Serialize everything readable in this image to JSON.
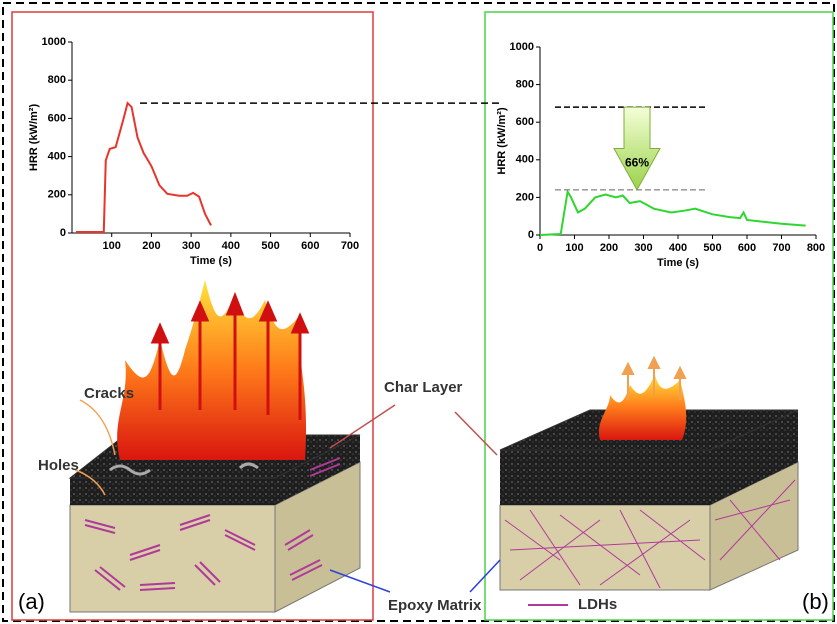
{
  "chart_data": [
    {
      "type": "line",
      "x_label": "Time (s)",
      "y_label": "HRR (kW/m²)",
      "xlim": [
        0,
        700
      ],
      "xticks": [
        100,
        200,
        300,
        400,
        500,
        600,
        700
      ],
      "ylim": [
        0,
        1000
      ],
      "yticks": [
        0,
        200,
        400,
        600,
        800,
        1000
      ],
      "hlines": [
        680
      ],
      "series": [
        {
          "color": "#e8342a",
          "x": [
            10,
            60,
            80,
            85,
            95,
            110,
            130,
            140,
            150,
            165,
            180,
            200,
            220,
            240,
            270,
            290,
            305,
            320,
            335,
            350
          ],
          "values": [
            5,
            5,
            5,
            380,
            440,
            450,
            600,
            680,
            660,
            500,
            420,
            350,
            250,
            205,
            195,
            195,
            210,
            190,
            100,
            40
          ]
        }
      ]
    },
    {
      "type": "line",
      "x_label": "Time (s)",
      "y_label": "HRR (kW/m²)",
      "xlim": [
        0,
        800
      ],
      "xticks": [
        0,
        100,
        200,
        300,
        400,
        500,
        600,
        700,
        800
      ],
      "ylim": [
        0,
        1000
      ],
      "yticks": [
        0,
        200,
        400,
        600,
        800,
        1000
      ],
      "hlines": [
        680,
        240
      ],
      "annotation": "66%",
      "series": [
        {
          "color": "#2fd62f",
          "x": [
            0,
            60,
            80,
            90,
            110,
            130,
            160,
            190,
            220,
            240,
            260,
            290,
            330,
            380,
            420,
            450,
            500,
            550,
            580,
            590,
            600,
            650,
            700,
            770
          ],
          "values": [
            0,
            5,
            230,
            200,
            120,
            140,
            200,
            215,
            200,
            210,
            170,
            180,
            140,
            120,
            130,
            140,
            110,
            95,
            90,
            120,
            80,
            70,
            60,
            50
          ]
        }
      ]
    }
  ],
  "illustration": {
    "cracks": "Cracks",
    "holes": "Holes",
    "char_layer": "Char Layer",
    "epoxy_matrix": "Epoxy Matrix",
    "ldhs": "LDHs",
    "panel_a": "(a)",
    "panel_b": "(b)"
  }
}
